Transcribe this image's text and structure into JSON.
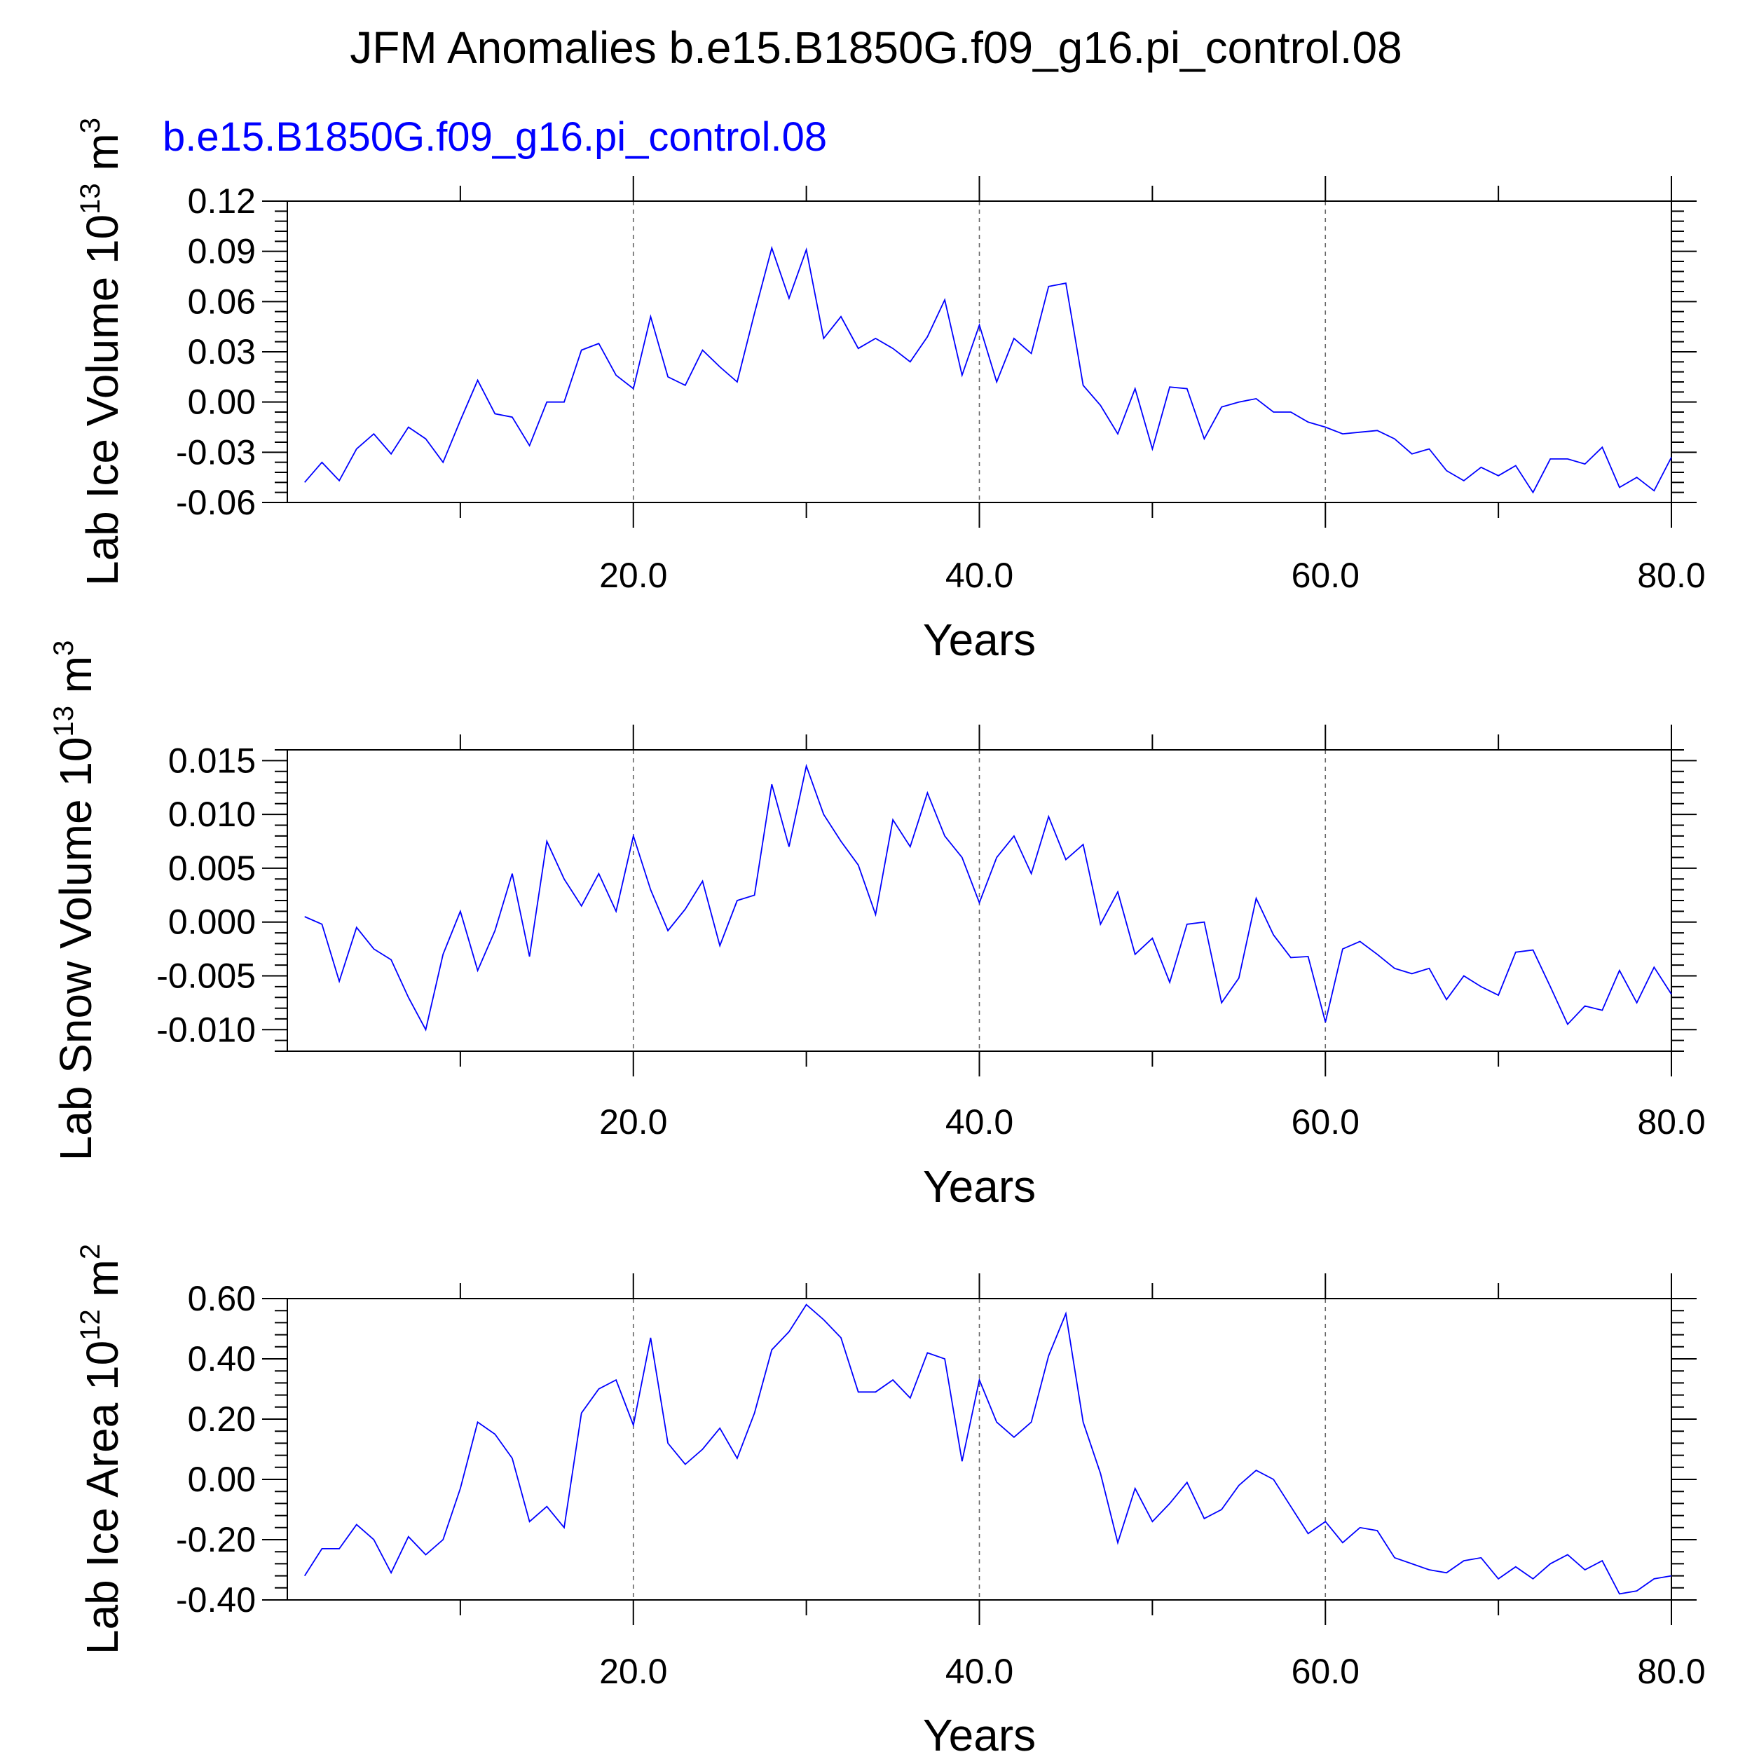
{
  "title": "JFM Anomalies b.e15.B1850G.f09_g16.pi_control.08",
  "subtitle": "b.e15.B1850G.f09_g16.pi_control.08",
  "colors": {
    "series": "#0000ff",
    "subtitle": "#0000ff",
    "text": "#000000",
    "grid": "#666666"
  },
  "chart_data": [
    {
      "type": "line",
      "ylabel": "Lab Ice Volume 10",
      "yunit_exponent": "13",
      "yunit_base": " m",
      "yunit_power": "3",
      "xlabel": "Years",
      "xlim": [
        1,
        80
      ],
      "ylim": [
        -0.06,
        0.12
      ],
      "yticks": [
        -0.06,
        -0.03,
        0.0,
        0.03,
        0.06,
        0.09,
        0.12
      ],
      "ytick_labels": [
        "-0.06",
        "-0.03",
        "0.00",
        "0.03",
        "0.06",
        "0.09",
        "0.12"
      ],
      "xticks": [
        20,
        40,
        60,
        80
      ],
      "xtick_labels": [
        "20.0",
        "40.0",
        "60.0",
        "80.0"
      ],
      "grid_x": [
        20,
        40,
        60
      ],
      "x_start": 1,
      "values": [
        -0.048,
        -0.036,
        -0.047,
        -0.028,
        -0.019,
        -0.031,
        -0.015,
        -0.022,
        -0.036,
        -0.011,
        0.013,
        -0.007,
        -0.009,
        -0.026,
        0.0,
        0.0,
        0.031,
        0.035,
        0.016,
        0.008,
        0.051,
        0.015,
        0.01,
        0.031,
        0.021,
        0.012,
        0.053,
        0.092,
        0.062,
        0.091,
        0.038,
        0.051,
        0.032,
        0.038,
        0.032,
        0.024,
        0.039,
        0.061,
        0.016,
        0.046,
        0.012,
        0.038,
        0.029,
        0.069,
        0.071,
        0.01,
        -0.002,
        -0.019,
        0.008,
        -0.028,
        0.009,
        0.008,
        -0.022,
        -0.003,
        0.0,
        0.002,
        -0.006,
        -0.006,
        -0.012,
        -0.015,
        -0.019,
        -0.018,
        -0.017,
        -0.022,
        -0.031,
        -0.028,
        -0.041,
        -0.047,
        -0.039,
        -0.044,
        -0.038,
        -0.054,
        -0.034,
        -0.034,
        -0.037,
        -0.027,
        -0.051,
        -0.045,
        -0.053,
        -0.033
      ]
    },
    {
      "type": "line",
      "ylabel": "Lab Snow Volume 10",
      "yunit_exponent": "13",
      "yunit_base": " m",
      "yunit_power": "3",
      "xlabel": "Years",
      "xlim": [
        1,
        80
      ],
      "ylim": [
        -0.012,
        0.016
      ],
      "yticks": [
        -0.01,
        -0.005,
        0.0,
        0.005,
        0.01,
        0.015
      ],
      "ytick_labels": [
        "-0.010",
        "-0.005",
        "0.000",
        "0.005",
        "0.010",
        "0.015"
      ],
      "xticks": [
        20,
        40,
        60,
        80
      ],
      "xtick_labels": [
        "20.0",
        "40.0",
        "60.0",
        "80.0"
      ],
      "grid_x": [
        20,
        40,
        60
      ],
      "x_start": 1,
      "values": [
        0.0005,
        -0.0002,
        -0.0055,
        -0.0005,
        -0.0025,
        -0.0035,
        -0.007,
        -0.01,
        -0.003,
        0.001,
        -0.0045,
        -0.0008,
        0.0045,
        -0.0032,
        0.0075,
        0.004,
        0.0015,
        0.0045,
        0.001,
        0.008,
        0.003,
        -0.0008,
        0.0012,
        0.0038,
        -0.0022,
        0.002,
        0.0025,
        0.0128,
        0.007,
        0.0145,
        0.01,
        0.0075,
        0.0053,
        0.0007,
        0.0095,
        0.007,
        0.012,
        0.008,
        0.006,
        0.0018,
        0.006,
        0.008,
        0.0045,
        0.0098,
        0.0058,
        0.0072,
        -0.0002,
        0.0028,
        -0.003,
        -0.0015,
        -0.0056,
        -0.0002,
        0.0,
        -0.0075,
        -0.0052,
        0.0022,
        -0.0012,
        -0.0033,
        -0.0032,
        -0.0093,
        -0.0025,
        -0.0018,
        -0.003,
        -0.0043,
        -0.0048,
        -0.0043,
        -0.0072,
        -0.005,
        -0.006,
        -0.0068,
        -0.0028,
        -0.0026,
        -0.006,
        -0.0095,
        -0.0078,
        -0.0082,
        -0.0045,
        -0.0075,
        -0.0042,
        -0.0067
      ]
    },
    {
      "type": "line",
      "ylabel": "Lab Ice Area 10",
      "yunit_exponent": "12",
      "yunit_base": " m",
      "yunit_power": "2",
      "xlabel": "Years",
      "xlim": [
        1,
        80
      ],
      "ylim": [
        -0.4,
        0.6
      ],
      "yticks": [
        -0.4,
        -0.2,
        0.0,
        0.2,
        0.4,
        0.6
      ],
      "ytick_labels": [
        "-0.40",
        "-0.20",
        "0.00",
        "0.20",
        "0.40",
        "0.60"
      ],
      "xticks": [
        20,
        40,
        60,
        80
      ],
      "xtick_labels": [
        "20.0",
        "40.0",
        "60.0",
        "80.0"
      ],
      "grid_x": [
        20,
        40,
        60
      ],
      "x_start": 1,
      "values": [
        -0.32,
        -0.23,
        -0.23,
        -0.15,
        -0.2,
        -0.31,
        -0.19,
        -0.25,
        -0.2,
        -0.03,
        0.19,
        0.15,
        0.07,
        -0.14,
        -0.09,
        -0.16,
        0.22,
        0.3,
        0.33,
        0.18,
        0.47,
        0.12,
        0.05,
        0.1,
        0.17,
        0.07,
        0.22,
        0.43,
        0.49,
        0.58,
        0.53,
        0.47,
        0.29,
        0.29,
        0.33,
        0.27,
        0.42,
        0.4,
        0.06,
        0.33,
        0.19,
        0.14,
        0.19,
        0.41,
        0.55,
        0.19,
        0.02,
        -0.21,
        -0.03,
        -0.14,
        -0.08,
        -0.01,
        -0.13,
        -0.1,
        -0.02,
        0.03,
        0.0,
        -0.09,
        -0.18,
        -0.14,
        -0.21,
        -0.16,
        -0.17,
        -0.26,
        -0.28,
        -0.3,
        -0.31,
        -0.27,
        -0.26,
        -0.33,
        -0.29,
        -0.33,
        -0.28,
        -0.25,
        -0.3,
        -0.27,
        -0.38,
        -0.37,
        -0.33,
        -0.32
      ]
    }
  ]
}
